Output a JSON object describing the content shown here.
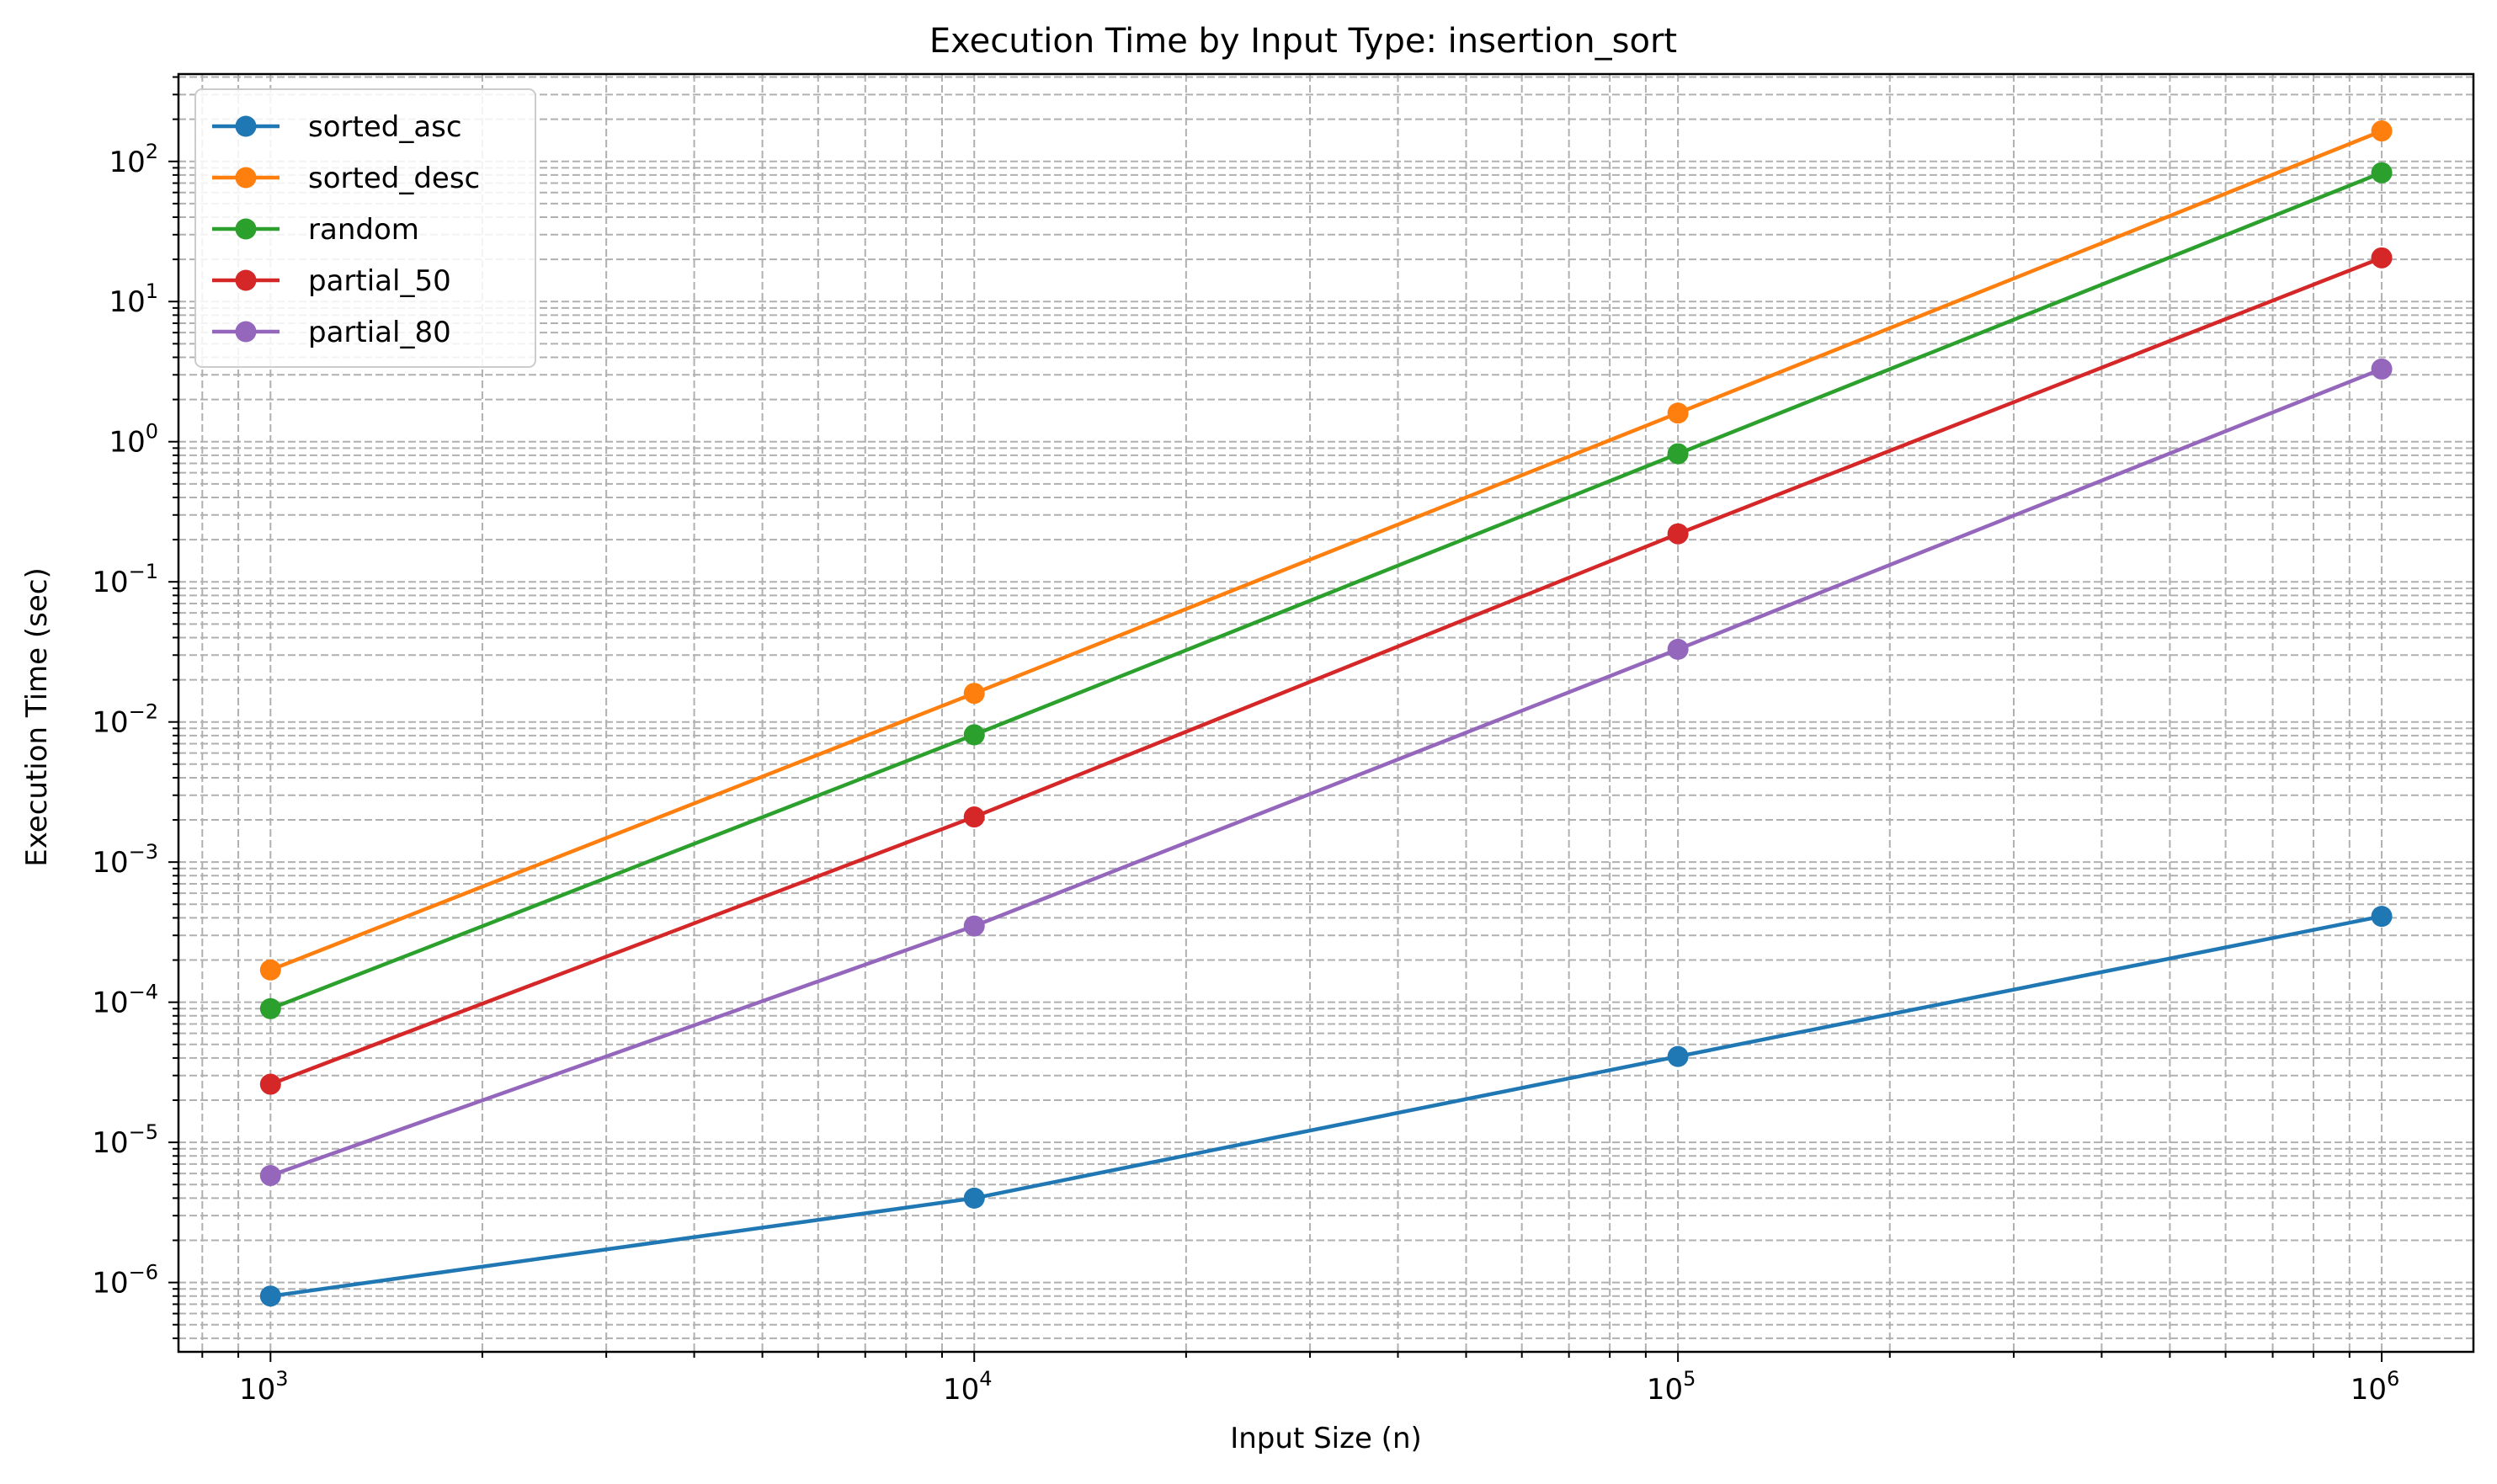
{
  "chart_data": {
    "type": "line",
    "title": "Execution Time by Input Type: insertion_sort",
    "xlabel": "Input Size (n)",
    "ylabel": "Execution Time (sec)",
    "xscale": "log",
    "yscale": "log",
    "xlim": [
      740,
      1350000
    ],
    "ylim": [
      3.2e-07,
      420
    ],
    "grid": true,
    "legend_position": "top-left",
    "x": [
      1000,
      10000,
      100000,
      1000000
    ],
    "x_ticks": [
      {
        "value": 1000,
        "base": "10",
        "exp": "3"
      },
      {
        "value": 10000,
        "base": "10",
        "exp": "4"
      },
      {
        "value": 100000,
        "base": "10",
        "exp": "5"
      },
      {
        "value": 1000000,
        "base": "10",
        "exp": "6"
      }
    ],
    "y_ticks": [
      {
        "value": 1e-06,
        "base": "10",
        "exp": "−6"
      },
      {
        "value": 1e-05,
        "base": "10",
        "exp": "−5"
      },
      {
        "value": 0.0001,
        "base": "10",
        "exp": "−4"
      },
      {
        "value": 0.001,
        "base": "10",
        "exp": "−3"
      },
      {
        "value": 0.01,
        "base": "10",
        "exp": "−2"
      },
      {
        "value": 0.1,
        "base": "10",
        "exp": "−1"
      },
      {
        "value": 1,
        "base": "10",
        "exp": "0"
      },
      {
        "value": 10,
        "base": "10",
        "exp": "1"
      },
      {
        "value": 100,
        "base": "10",
        "exp": "2"
      }
    ],
    "series": [
      {
        "name": "sorted_asc",
        "color": "#1f77b4",
        "values": [
          8e-07,
          4e-06,
          4.1e-05,
          0.00041
        ]
      },
      {
        "name": "sorted_desc",
        "color": "#ff7f0e",
        "values": [
          0.00017,
          0.016,
          1.6,
          165
        ]
      },
      {
        "name": "random",
        "color": "#2ca02c",
        "values": [
          9e-05,
          0.0081,
          0.82,
          83
        ]
      },
      {
        "name": "partial_50",
        "color": "#d62728",
        "values": [
          2.6e-05,
          0.0021,
          0.22,
          20.5
        ]
      },
      {
        "name": "partial_80",
        "color": "#9467bd",
        "values": [
          5.8e-06,
          0.00035,
          0.033,
          3.3
        ]
      }
    ]
  }
}
